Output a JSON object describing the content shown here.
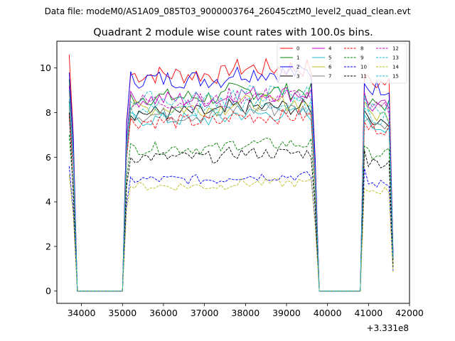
{
  "figure": {
    "suptitle": "Data file: modeM0/AS1A09_085T03_9000003764_26045cztM0_level2_quad_clean.evt",
    "title": "Quadrant 2 module wise count rates with 100.0s bins.",
    "x_offset_label": "+3.331e8"
  },
  "chart_data": {
    "type": "line",
    "title": "Quadrant 2 module wise count rates with 100.0s bins.",
    "xlabel": "",
    "ylabel": "",
    "x_offset": 333100000,
    "xlim": [
      33400,
      42000
    ],
    "ylim": [
      -0.55,
      11.2
    ],
    "xticks": [
      34000,
      35000,
      36000,
      37000,
      38000,
      39000,
      40000,
      41000,
      42000
    ],
    "yticks": [
      0,
      2,
      4,
      6,
      8,
      10
    ],
    "grid": false,
    "legend_position": "top-right",
    "legend_columns": 4,
    "segments": [
      [
        33700,
        33900
      ],
      [
        34000,
        35000
      ],
      [
        35100,
        39700
      ],
      [
        39800,
        40800
      ],
      [
        40900,
        41600
      ]
    ],
    "series": [
      {
        "name": "0",
        "color": "#ff0000",
        "style": "solid",
        "level": 9.7,
        "first": 10.6,
        "gap_first": 9.7
      },
      {
        "name": "1",
        "color": "#008000",
        "style": "solid",
        "level": 8.7,
        "first": 9.5,
        "gap_first": 8.8
      },
      {
        "name": "2",
        "color": "#0000ff",
        "style": "solid",
        "level": 9.5,
        "first": 9.8,
        "gap_first": 9.3
      },
      {
        "name": "3",
        "color": "#000000",
        "style": "solid",
        "level": 8.0,
        "first": 8.5,
        "gap_first": 8.1
      },
      {
        "name": "4",
        "color": "#bf00bf",
        "style": "solid",
        "level": 8.6,
        "first": 9.2,
        "gap_first": 8.9
      },
      {
        "name": "5",
        "color": "#17becf",
        "style": "solid",
        "level": 7.7,
        "first": 8.4,
        "gap_first": 7.9
      },
      {
        "name": "6",
        "color": "#bcbd22",
        "style": "solid",
        "level": 8.2,
        "first": 8.9,
        "gap_first": 8.5
      },
      {
        "name": "7",
        "color": "#7f7f7f",
        "style": "solid",
        "level": 7.9,
        "first": 8.3,
        "gap_first": 7.6
      },
      {
        "name": "8",
        "color": "#ff0000",
        "style": "dashed",
        "level": 7.6,
        "first": 7.9,
        "gap_first": 7.6
      },
      {
        "name": "9",
        "color": "#008000",
        "style": "dashed",
        "level": 6.4,
        "first": 7.0,
        "gap_first": 6.5
      },
      {
        "name": "10",
        "color": "#0000ff",
        "style": "dashed",
        "level": 5.0,
        "first": 5.6,
        "gap_first": 5.5
      },
      {
        "name": "11",
        "color": "#000000",
        "style": "dashed",
        "level": 6.0,
        "first": 8.0,
        "gap_first": 6.3
      },
      {
        "name": "12",
        "color": "#bf00bf",
        "style": "dashed",
        "level": 8.5,
        "first": 9.0,
        "gap_first": 8.6
      },
      {
        "name": "13",
        "color": "#17becf",
        "style": "dashed",
        "level": 8.1,
        "first": 8.6,
        "gap_first": 8.2
      },
      {
        "name": "14",
        "color": "#bcbd22",
        "style": "dashed",
        "level": 4.7,
        "first": 5.2,
        "gap_first": 4.6
      },
      {
        "name": "15",
        "color": "#17becf",
        "style": "dashed",
        "level": 8.6,
        "first": 9.0,
        "gap_first": 8.8
      }
    ]
  }
}
